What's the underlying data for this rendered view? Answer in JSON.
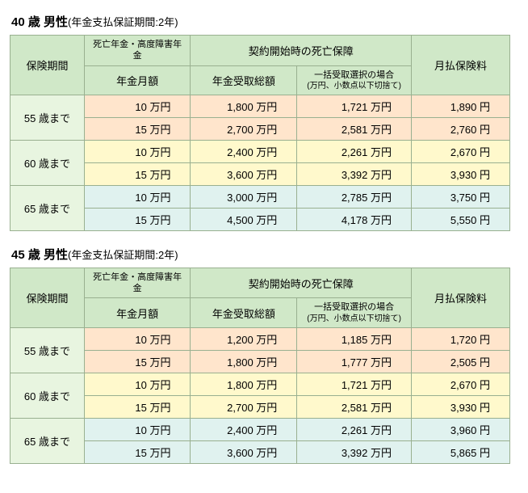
{
  "tables": [
    {
      "title_bold": "40 歳 男性",
      "title_sub": "(年金支払保証期間:2年)",
      "headers": {
        "period": "保険期間",
        "death_annuity_line1": "死亡年金・高度障害年金",
        "death_annuity_line2": "年金月額",
        "death_coverage": "契約開始時の死亡保障",
        "total_receive": "年金受取総額",
        "lump_line1": "一括受取選択の場合",
        "lump_line2": "(万円、小数点以下切捨て)",
        "premium": "月払保険料"
      },
      "rows": [
        {
          "period": "55 歳まで",
          "color": "a",
          "monthly": "10 万円",
          "total": "1,800 万円",
          "lump": "1,721 万円",
          "premium": "1,890 円"
        },
        {
          "period": "",
          "color": "a",
          "monthly": "15 万円",
          "total": "2,700 万円",
          "lump": "2,581 万円",
          "premium": "2,760 円"
        },
        {
          "period": "60 歳まで",
          "color": "b",
          "monthly": "10 万円",
          "total": "2,400 万円",
          "lump": "2,261 万円",
          "premium": "2,670 円"
        },
        {
          "period": "",
          "color": "b",
          "monthly": "15 万円",
          "total": "3,600 万円",
          "lump": "3,392 万円",
          "premium": "3,930 円"
        },
        {
          "period": "65 歳まで",
          "color": "c",
          "monthly": "10 万円",
          "total": "3,000 万円",
          "lump": "2,785 万円",
          "premium": "3,750 円"
        },
        {
          "period": "",
          "color": "c",
          "monthly": "15 万円",
          "total": "4,500 万円",
          "lump": "4,178 万円",
          "premium": "5,550 円"
        }
      ]
    },
    {
      "title_bold": "45 歳 男性",
      "title_sub": "(年金支払保証期間:2年)",
      "headers": {
        "period": "保険期間",
        "death_annuity_line1": "死亡年金・高度障害年金",
        "death_annuity_line2": "年金月額",
        "death_coverage": "契約開始時の死亡保障",
        "total_receive": "年金受取総額",
        "lump_line1": "一括受取選択の場合",
        "lump_line2": "(万円、小数点以下切捨て)",
        "premium": "月払保険料"
      },
      "rows": [
        {
          "period": "55 歳まで",
          "color": "a",
          "monthly": "10 万円",
          "total": "1,200 万円",
          "lump": "1,185 万円",
          "premium": "1,720 円"
        },
        {
          "period": "",
          "color": "a",
          "monthly": "15 万円",
          "total": "1,800 万円",
          "lump": "1,777 万円",
          "premium": "2,505 円"
        },
        {
          "period": "60 歳まで",
          "color": "b",
          "monthly": "10 万円",
          "total": "1,800 万円",
          "lump": "1,721 万円",
          "premium": "2,670 円"
        },
        {
          "period": "",
          "color": "b",
          "monthly": "15 万円",
          "total": "2,700 万円",
          "lump": "2,581 万円",
          "premium": "3,930 円"
        },
        {
          "period": "65 歳まで",
          "color": "c",
          "monthly": "10 万円",
          "total": "2,400 万円",
          "lump": "2,261 万円",
          "premium": "3,960 円"
        },
        {
          "period": "",
          "color": "c",
          "monthly": "15 万円",
          "total": "3,600 万円",
          "lump": "3,392 万円",
          "premium": "5,865 円"
        }
      ]
    }
  ]
}
